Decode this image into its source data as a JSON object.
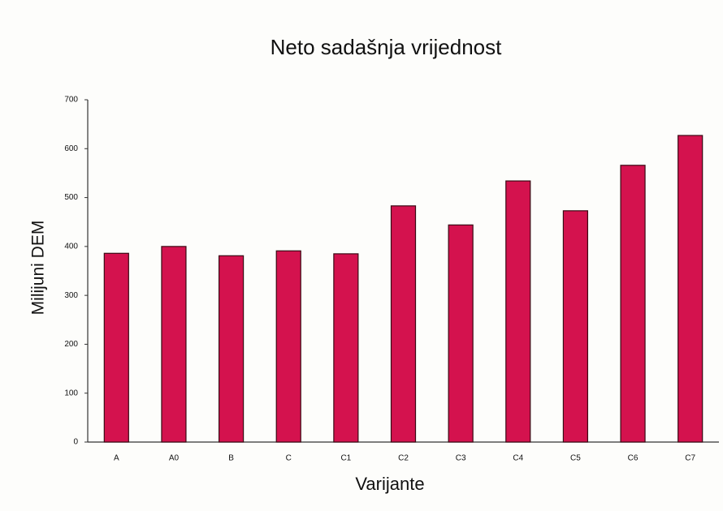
{
  "chart_data": {
    "type": "bar",
    "title": "Neto sadašnja vrijednost",
    "x_label": "Varijante",
    "y_label": "Milijuni DEM",
    "categories": [
      "A",
      "A0",
      "B",
      "C",
      "C1",
      "C2",
      "C3",
      "C4",
      "C5",
      "C6",
      "C7"
    ],
    "values": [
      386,
      400,
      381,
      391,
      385,
      483,
      444,
      534,
      473,
      566,
      627
    ],
    "color": "#d4124e",
    "ylim": [
      0,
      700
    ],
    "yticks": [
      0,
      100,
      200,
      300,
      400,
      500,
      600,
      700
    ],
    "grid": false
  }
}
